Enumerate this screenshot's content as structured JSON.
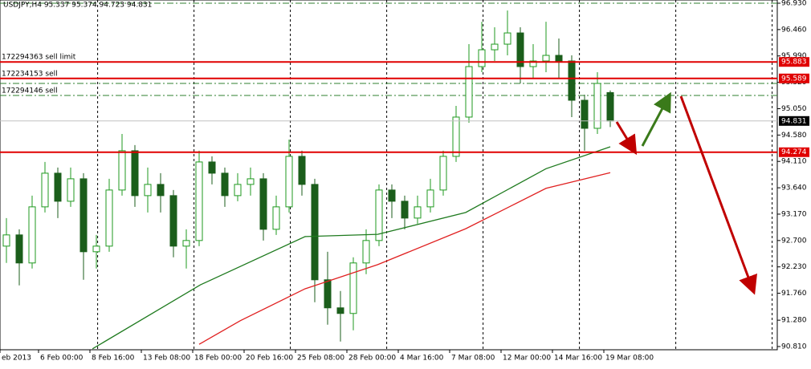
{
  "chart_data": {
    "type": "candlestick",
    "header": "USDJPY,H4  95.337 95.374 94.723 94.831",
    "up_color": "#1f9a1f",
    "down_color": "#1b5e1b",
    "open": [
      92.6,
      92.8,
      92.3,
      93.3,
      93.9,
      93.4,
      93.8,
      92.5,
      92.6,
      93.6,
      94.3,
      93.5,
      93.7,
      93.5,
      92.6,
      92.7,
      94.1,
      93.9,
      93.5,
      93.7,
      93.8,
      92.9,
      93.3,
      94.2,
      93.7,
      92.0,
      91.5,
      91.4,
      92.3,
      92.7,
      93.6,
      93.4,
      93.1,
      93.3,
      93.6,
      94.2,
      94.9,
      95.8,
      96.1,
      96.2,
      96.4,
      95.8,
      95.9,
      96.0,
      95.9,
      95.2,
      94.7,
      95.337
    ],
    "high": [
      93.1,
      92.9,
      93.5,
      94.1,
      94.0,
      94.0,
      93.9,
      92.8,
      93.8,
      94.6,
      94.4,
      94.0,
      93.9,
      93.6,
      92.9,
      94.3,
      94.2,
      94.0,
      93.9,
      94.0,
      93.9,
      93.5,
      94.5,
      94.3,
      93.8,
      92.5,
      91.8,
      92.4,
      92.9,
      93.7,
      93.7,
      93.5,
      93.5,
      93.8,
      94.3,
      95.1,
      96.2,
      96.6,
      96.5,
      96.8,
      96.5,
      96.2,
      96.6,
      96.3,
      96.0,
      95.3,
      95.7,
      95.374
    ],
    "low": [
      92.3,
      91.9,
      92.2,
      93.2,
      93.1,
      93.3,
      92.0,
      92.2,
      92.5,
      93.5,
      93.3,
      93.2,
      93.2,
      92.4,
      92.2,
      92.6,
      93.7,
      93.3,
      93.4,
      93.5,
      92.7,
      92.8,
      93.2,
      93.5,
      91.6,
      91.2,
      90.9,
      91.1,
      92.1,
      92.6,
      93.1,
      92.9,
      93.0,
      93.2,
      93.5,
      94.1,
      94.8,
      95.7,
      95.9,
      96.0,
      95.5,
      95.6,
      95.7,
      95.6,
      94.9,
      94.3,
      94.6,
      94.723
    ],
    "close": [
      92.8,
      92.3,
      93.3,
      93.9,
      93.4,
      93.8,
      92.5,
      92.6,
      93.6,
      94.3,
      93.5,
      93.7,
      93.5,
      92.6,
      92.7,
      94.1,
      93.9,
      93.5,
      93.7,
      93.8,
      92.9,
      93.3,
      94.2,
      93.7,
      92.0,
      91.5,
      91.4,
      92.3,
      92.7,
      93.6,
      93.4,
      93.1,
      93.3,
      93.6,
      94.2,
      94.9,
      95.8,
      96.1,
      96.2,
      96.4,
      95.8,
      95.9,
      96.0,
      95.9,
      95.2,
      94.7,
      95.5,
      94.831
    ],
    "moving_averages": [
      {
        "color": "#1e7a1e",
        "x": [
          6.7,
          15.1,
          23.25,
          28.9,
          35.75,
          42,
          47
        ],
        "values": [
          90.77,
          91.91,
          92.77,
          92.81,
          93.2,
          93.98,
          94.37
        ]
      },
      {
        "color": "#e02020",
        "x": [
          15,
          18.2,
          23.25,
          28.9,
          35.75,
          42,
          47
        ],
        "values": [
          90.85,
          91.27,
          91.84,
          92.27,
          92.91,
          93.63,
          93.91
        ]
      }
    ],
    "levels": [
      {
        "value": 95.883,
        "color": "#e00000",
        "label": "172294363 sell limit"
      },
      {
        "value": 95.589,
        "color": "#e00000",
        "label": "172234153 sell"
      },
      {
        "value": 94.274,
        "color": "#e00000"
      }
    ],
    "order_lines": [
      {
        "value": 96.93,
        "color": "#2f7f2f"
      },
      {
        "value": 95.5,
        "color": "#2f7f2f"
      },
      {
        "value": 95.285,
        "color": "#2f7f2f",
        "label": "172294146 sell"
      }
    ],
    "ylim": [
      90.753,
      96.987
    ],
    "xlim": [
      -0.5,
      60
    ],
    "yticks": [
      {
        "value": 96.93,
        "label": "96.930"
      },
      {
        "value": 96.46,
        "label": "96.460"
      },
      {
        "value": 95.99,
        "label": "95.990"
      },
      {
        "value": 95.52,
        "label": "95.520"
      },
      {
        "value": 95.05,
        "label": "95.050"
      },
      {
        "value": 94.58,
        "label": "94.580"
      },
      {
        "value": 94.11,
        "label": "94.110"
      },
      {
        "value": 93.64,
        "label": "93.640"
      },
      {
        "value": 93.17,
        "label": "93.170"
      },
      {
        "value": 92.7,
        "label": "92.700"
      },
      {
        "value": 92.23,
        "label": "92.230"
      },
      {
        "value": 91.76,
        "label": "91.760"
      },
      {
        "value": 91.28,
        "label": "91.280"
      },
      {
        "value": 90.81,
        "label": "90.810"
      }
    ],
    "xticks": [
      {
        "value": -0.5,
        "label": "eb 2013"
      },
      {
        "value": 2.5,
        "label": "6 Feb 00:00"
      },
      {
        "value": 6.5,
        "label": "8 Feb 16:00"
      },
      {
        "value": 10.5,
        "label": "13 Feb 08:00"
      },
      {
        "value": 14.5,
        "label": "18 Feb 00:00"
      },
      {
        "value": 18.5,
        "label": "20 Feb 16:00"
      },
      {
        "value": 22.5,
        "label": "25 Feb 08:00"
      },
      {
        "value": 26.5,
        "label": "28 Feb 00:00"
      },
      {
        "value": 30.5,
        "label": "4 Mar 16:00"
      },
      {
        "value": 34.5,
        "label": "7 Mar 08:00"
      },
      {
        "value": 38.5,
        "label": "12 Mar 00:00"
      },
      {
        "value": 42.5,
        "label": "14 Mar 16:00"
      },
      {
        "value": 46.5,
        "label": "19 Mar 08:00"
      }
    ],
    "xgrid": [
      7.1,
      14.6,
      22.1,
      29.6,
      37.1,
      44.6,
      52.1,
      59.6
    ]
  }
}
